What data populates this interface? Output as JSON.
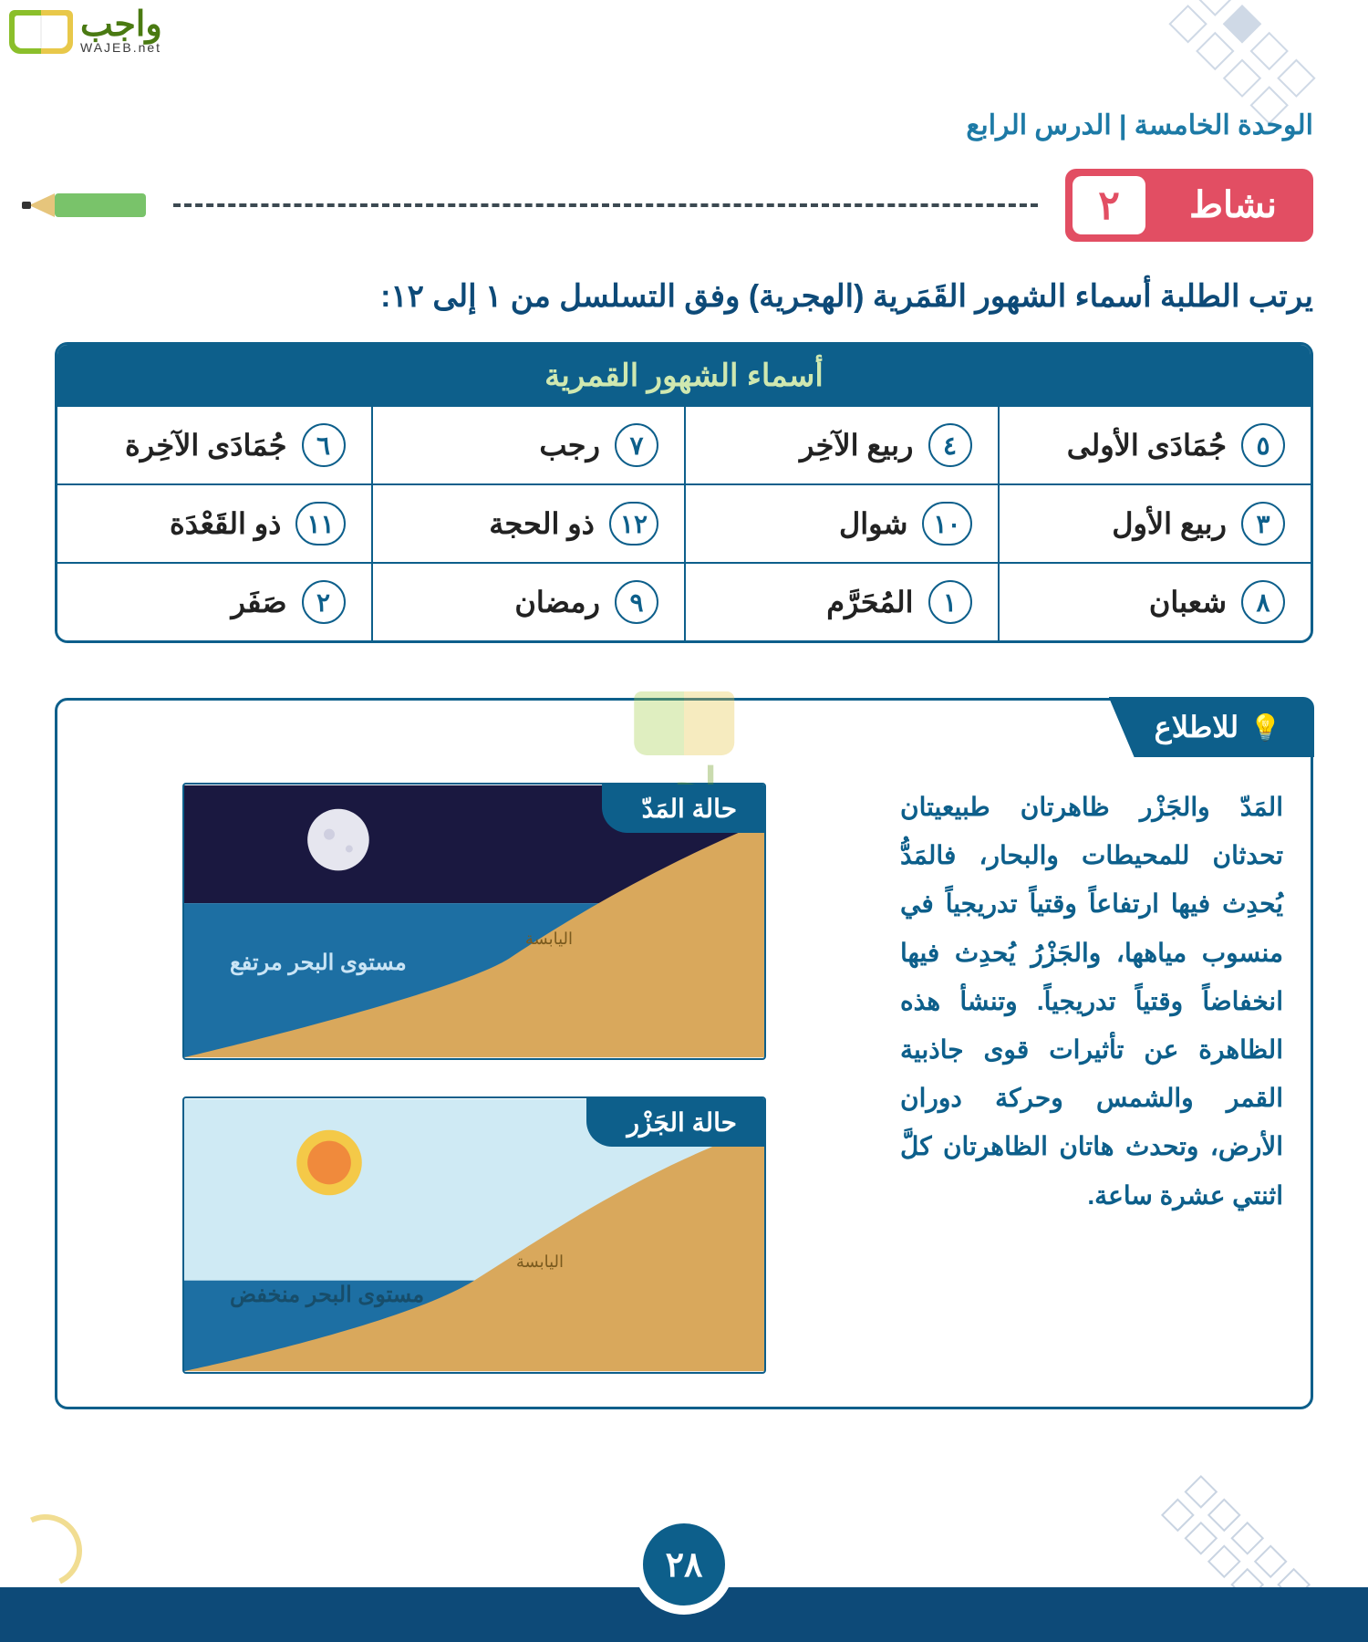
{
  "logo": {
    "ar": "واجب",
    "en": "WAJEB.net"
  },
  "breadcrumb": "الوحدة الخامسة | الدرس الرابع",
  "activity": {
    "label": "نشاط",
    "number": "٢"
  },
  "instruction": "يرتب الطلبة أسماء الشهور القَمَرية (الهجرية) وفق التسلسل من ١ إلى ١٢:",
  "months_table": {
    "title": "أسماء الشهور القمرية",
    "cells": [
      {
        "num": "٥",
        "name": "جُمَادَى الأولى"
      },
      {
        "num": "٤",
        "name": "ربيع الآخِر"
      },
      {
        "num": "٧",
        "name": "رجب"
      },
      {
        "num": "٦",
        "name": "جُمَادَى الآخِرة"
      },
      {
        "num": "٣",
        "name": "ربيع الأول"
      },
      {
        "num": "١٠",
        "name": "شوال"
      },
      {
        "num": "١٢",
        "name": "ذو الحجة"
      },
      {
        "num": "١١",
        "name": "ذو القَعْدَة"
      },
      {
        "num": "٨",
        "name": "شعبان"
      },
      {
        "num": "١",
        "name": "المُحَرَّم"
      },
      {
        "num": "٩",
        "name": "رمضان"
      },
      {
        "num": "٢",
        "name": "صَفَر"
      }
    ]
  },
  "info": {
    "tag": "للاطلاع",
    "text": "المَدّ والجَزْر ظاهرتان طبيعيتان تحدثان للمحيطات والبحار، فالمَدُّ يُحدِث فيها ارتفاعاً وقتياً تدريجياً في منسوب مياهها، والجَزْرُ يُحدِث فيها انخفاضاً وقتياً تدريجياً. وتنشأ هذه الظاهرة عن تأثيرات قوى جاذبية القمر والشمس وحركة دوران الأرض، وتحدث هاتان الظاهرتان كلَّ اثنتي عشرة ساعة.",
    "high": {
      "title": "حالة المَدّ",
      "sea_label": "مستوى البحر مرتفع",
      "land_label": "اليابسة",
      "colors": {
        "sky": "#1a1840",
        "sea": "#1d6fa3",
        "land": "#d9a85c",
        "moon": "#e6e6ef"
      }
    },
    "low": {
      "title": "حالة الجَزْر",
      "sea_label": "مستوى البحر منخفض",
      "land_label": "اليابسة",
      "colors": {
        "sky": "#cfeaf4",
        "sea": "#1d6fa3",
        "land": "#d9a85c",
        "sun_outer": "#f4c948",
        "sun_inner": "#f08a3c"
      }
    }
  },
  "watermark": {
    "ar": "واجب",
    "en": "WAJEB.net"
  },
  "page_number": "٢٨"
}
